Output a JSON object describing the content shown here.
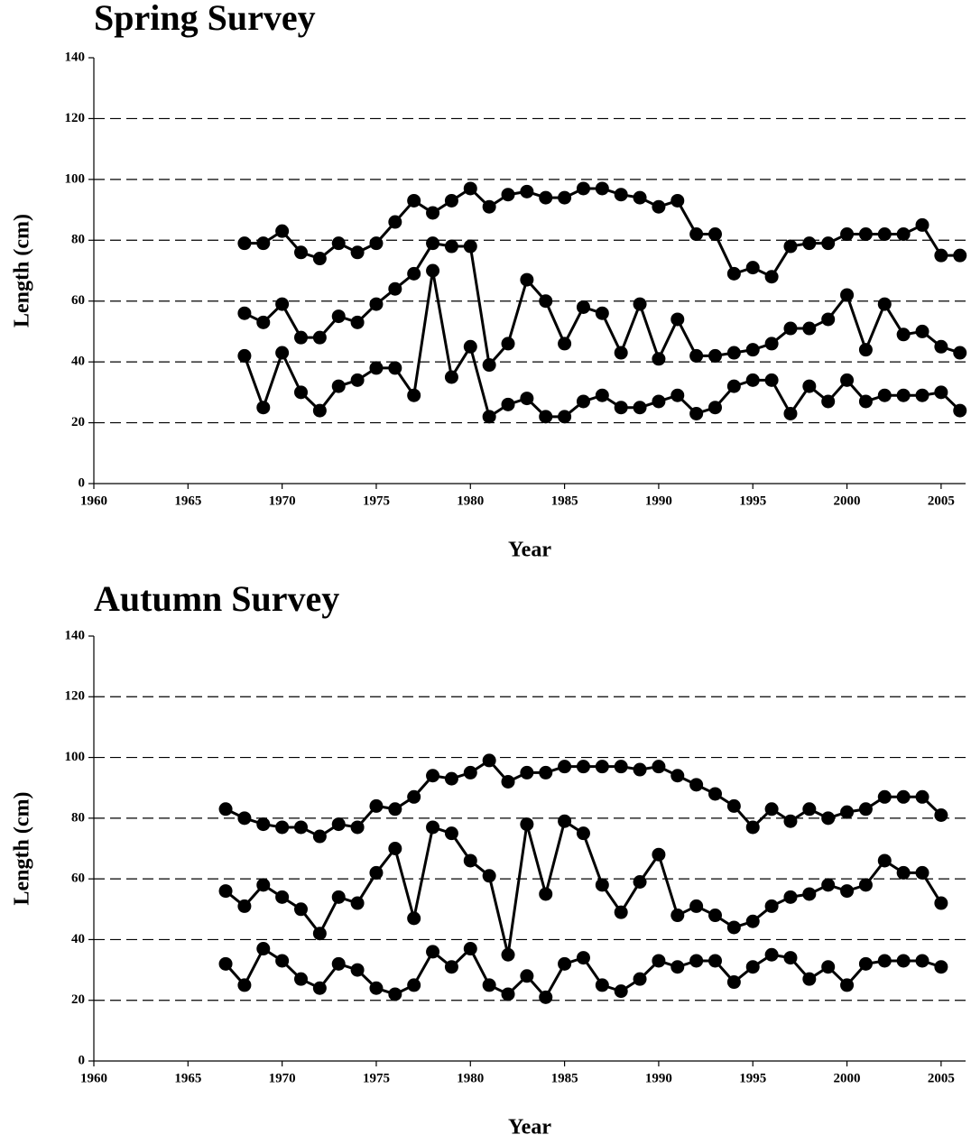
{
  "chart_data": [
    {
      "type": "line",
      "title": "Spring Survey",
      "xlabel": "Year",
      "ylabel": "Length (cm)",
      "x": [
        1968,
        1969,
        1970,
        1971,
        1972,
        1973,
        1974,
        1975,
        1976,
        1977,
        1978,
        1979,
        1980,
        1981,
        1982,
        1983,
        1984,
        1985,
        1986,
        1987,
        1988,
        1989,
        1990,
        1991,
        1992,
        1993,
        1994,
        1995,
        1996,
        1997,
        1998,
        1999,
        2000,
        2001,
        2002,
        2003,
        2004,
        2005,
        2006
      ],
      "series": [
        {
          "color": "#000000",
          "values": [
            79,
            79,
            83,
            76,
            74,
            79,
            76,
            79,
            86,
            93,
            89,
            93,
            97,
            91,
            95,
            96,
            94,
            94,
            97,
            97,
            95,
            94,
            91,
            93,
            82,
            82,
            69,
            71,
            68,
            78,
            79,
            79,
            82,
            82,
            82,
            82,
            85,
            75,
            75
          ]
        },
        {
          "color": "#000000",
          "values": [
            56,
            53,
            59,
            48,
            48,
            55,
            53,
            59,
            64,
            69,
            79,
            78,
            78,
            39,
            46,
            67,
            60,
            46,
            58,
            56,
            43,
            59,
            41,
            54,
            42,
            42,
            43,
            44,
            46,
            51,
            51,
            54,
            62,
            44,
            59,
            49,
            50,
            45,
            43
          ]
        },
        {
          "color": "#000000",
          "values": [
            42,
            25,
            43,
            30,
            24,
            32,
            34,
            38,
            38,
            29,
            70,
            35,
            45,
            22,
            26,
            28,
            22,
            22,
            27,
            29,
            25,
            25,
            27,
            29,
            23,
            25,
            32,
            34,
            34,
            23,
            32,
            27,
            34,
            27,
            29,
            29,
            29,
            30,
            24
          ]
        }
      ],
      "xlim": [
        1960,
        2006.3
      ],
      "xticks": [
        1960,
        1965,
        1970,
        1975,
        1980,
        1985,
        1990,
        1995,
        2000,
        2005
      ],
      "ylim": [
        0,
        140
      ],
      "yticks": [
        0,
        20,
        40,
        60,
        80,
        100,
        120,
        140
      ],
      "grid": true
    },
    {
      "type": "line",
      "title": "Autumn Survey",
      "xlabel": "Year",
      "ylabel": "Length (cm)",
      "x": [
        1967,
        1968,
        1969,
        1970,
        1971,
        1972,
        1973,
        1974,
        1975,
        1976,
        1977,
        1978,
        1979,
        1980,
        1981,
        1982,
        1983,
        1984,
        1985,
        1986,
        1987,
        1988,
        1989,
        1990,
        1991,
        1992,
        1993,
        1994,
        1995,
        1996,
        1997,
        1998,
        1999,
        2000,
        2001,
        2002,
        2003,
        2004,
        2005
      ],
      "series": [
        {
          "color": "#000000",
          "values": [
            83,
            80,
            78,
            77,
            77,
            74,
            78,
            77,
            84,
            83,
            87,
            94,
            93,
            95,
            99,
            92,
            95,
            95,
            97,
            97,
            97,
            97,
            96,
            97,
            94,
            91,
            88,
            84,
            77,
            83,
            79,
            83,
            80,
            82,
            83,
            87,
            87,
            87,
            81
          ]
        },
        {
          "color": "#000000",
          "values": [
            56,
            51,
            58,
            54,
            50,
            42,
            54,
            52,
            62,
            70,
            47,
            77,
            75,
            66,
            61,
            35,
            78,
            55,
            79,
            75,
            58,
            49,
            59,
            68,
            48,
            51,
            48,
            44,
            46,
            51,
            54,
            55,
            58,
            56,
            58,
            66,
            62,
            62,
            52
          ]
        },
        {
          "color": "#000000",
          "values": [
            32,
            25,
            37,
            33,
            27,
            24,
            32,
            30,
            24,
            22,
            25,
            36,
            31,
            37,
            25,
            22,
            28,
            21,
            32,
            34,
            25,
            23,
            27,
            33,
            31,
            33,
            33,
            26,
            31,
            35,
            34,
            27,
            31,
            25,
            32,
            33,
            33,
            33,
            31
          ]
        }
      ],
      "xlim": [
        1960,
        2006.3
      ],
      "xticks": [
        1960,
        1965,
        1970,
        1975,
        1980,
        1985,
        1990,
        1995,
        2000,
        2005
      ],
      "ylim": [
        0,
        140
      ],
      "yticks": [
        0,
        20,
        40,
        60,
        80,
        100,
        120,
        140
      ],
      "grid": true
    }
  ]
}
